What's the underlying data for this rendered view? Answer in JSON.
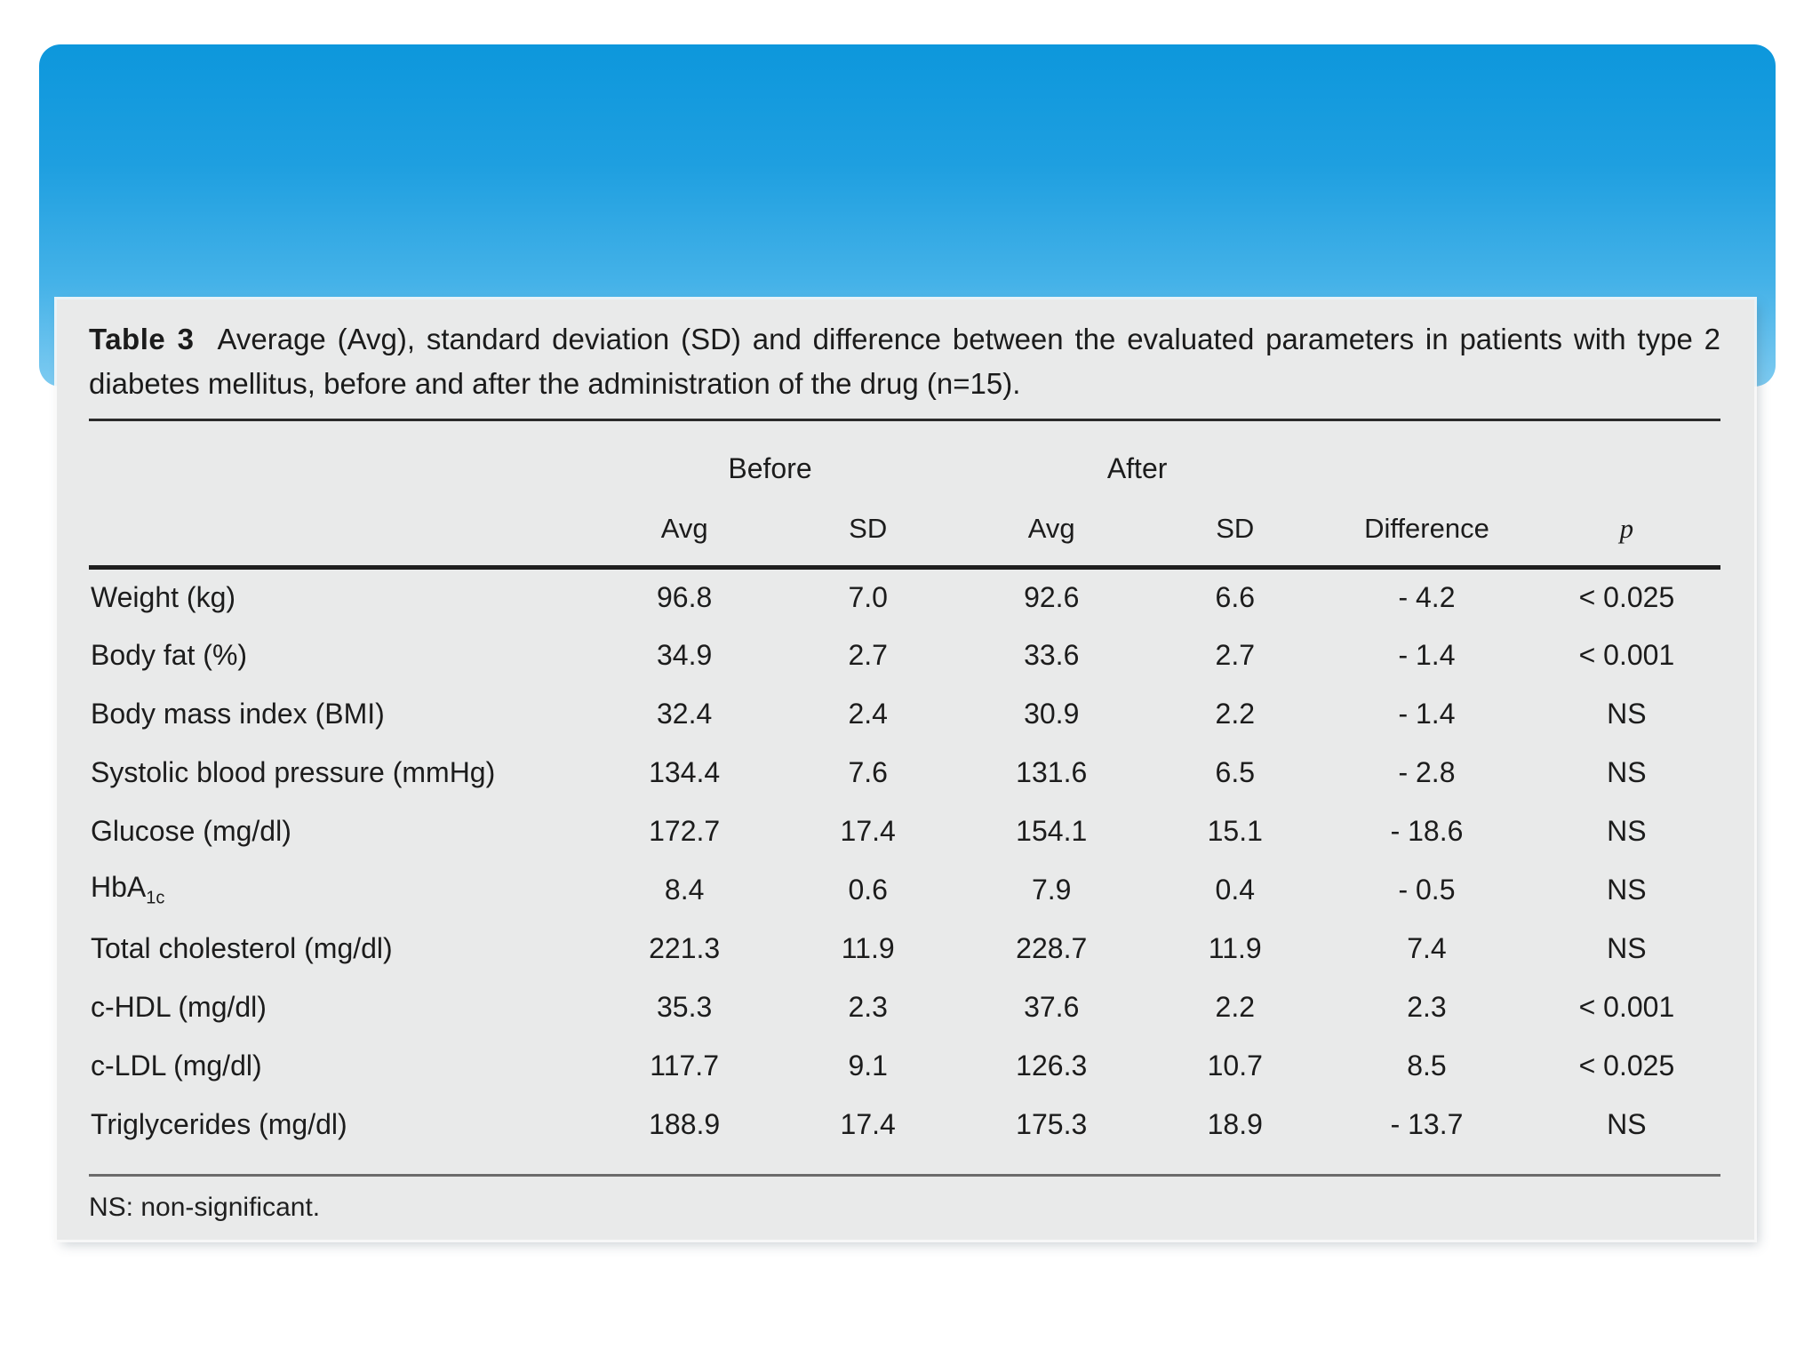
{
  "slide": {
    "banner": {
      "gradient_top_color": "#0d97dc",
      "gradient_bottom_color": "#7ecbf1"
    },
    "panel_background_color": "#e9eaea",
    "text_color": "#1c1c1c"
  },
  "table": {
    "caption_label": "Table 3",
    "caption_text": "Average (Avg), standard deviation (SD) and difference between the evaluated parameters in patients with type 2 diabetes mellitus, before and after the administration of the drug (n=15).",
    "group_headers": {
      "before": "Before",
      "after": "After"
    },
    "column_headers": {
      "before_avg": "Avg",
      "before_sd": "SD",
      "after_avg": "Avg",
      "after_sd": "SD",
      "difference": "Difference",
      "p": "p"
    },
    "rows": [
      {
        "parameter": "Weight (kg)",
        "sub": "",
        "before_avg": "96.8",
        "before_sd": "7.0",
        "after_avg": "92.6",
        "after_sd": "6.6",
        "difference": "- 4.2",
        "p": "< 0.025"
      },
      {
        "parameter": "Body fat (%)",
        "sub": "",
        "before_avg": "34.9",
        "before_sd": "2.7",
        "after_avg": "33.6",
        "after_sd": "2.7",
        "difference": "- 1.4",
        "p": "< 0.001"
      },
      {
        "parameter": "Body mass index (BMI)",
        "sub": "",
        "before_avg": "32.4",
        "before_sd": "2.4",
        "after_avg": "30.9",
        "after_sd": "2.2",
        "difference": "- 1.4",
        "p": "NS"
      },
      {
        "parameter": "Systolic blood pressure (mmHg)",
        "sub": "",
        "before_avg": "134.4",
        "before_sd": "7.6",
        "after_avg": "131.6",
        "after_sd": "6.5",
        "difference": "- 2.8",
        "p": "NS"
      },
      {
        "parameter": "Glucose (mg/dl)",
        "sub": "",
        "before_avg": "172.7",
        "before_sd": "17.4",
        "after_avg": "154.1",
        "after_sd": "15.1",
        "difference": "- 18.6",
        "p": "NS"
      },
      {
        "parameter": "HbA",
        "sub": "1c",
        "before_avg": "8.4",
        "before_sd": "0.6",
        "after_avg": "7.9",
        "after_sd": "0.4",
        "difference": "- 0.5",
        "p": "NS"
      },
      {
        "parameter": "Total cholesterol (mg/dl)",
        "sub": "",
        "before_avg": "221.3",
        "before_sd": "11.9",
        "after_avg": "228.7",
        "after_sd": "11.9",
        "difference": "7.4",
        "p": "NS"
      },
      {
        "parameter": "c-HDL (mg/dl)",
        "sub": "",
        "before_avg": "35.3",
        "before_sd": "2.3",
        "after_avg": "37.6",
        "after_sd": "2.2",
        "difference": "2.3",
        "p": "< 0.001"
      },
      {
        "parameter": "c-LDL (mg/dl)",
        "sub": "",
        "before_avg": "117.7",
        "before_sd": "9.1",
        "after_avg": "126.3",
        "after_sd": "10.7",
        "difference": "8.5",
        "p": "< 0.025"
      },
      {
        "parameter": "Triglycerides (mg/dl)",
        "sub": "",
        "before_avg": "188.9",
        "before_sd": "17.4",
        "after_avg": "175.3",
        "after_sd": "18.9",
        "difference": "- 13.7",
        "p": "NS"
      }
    ],
    "footnote": "NS: non-significant."
  }
}
